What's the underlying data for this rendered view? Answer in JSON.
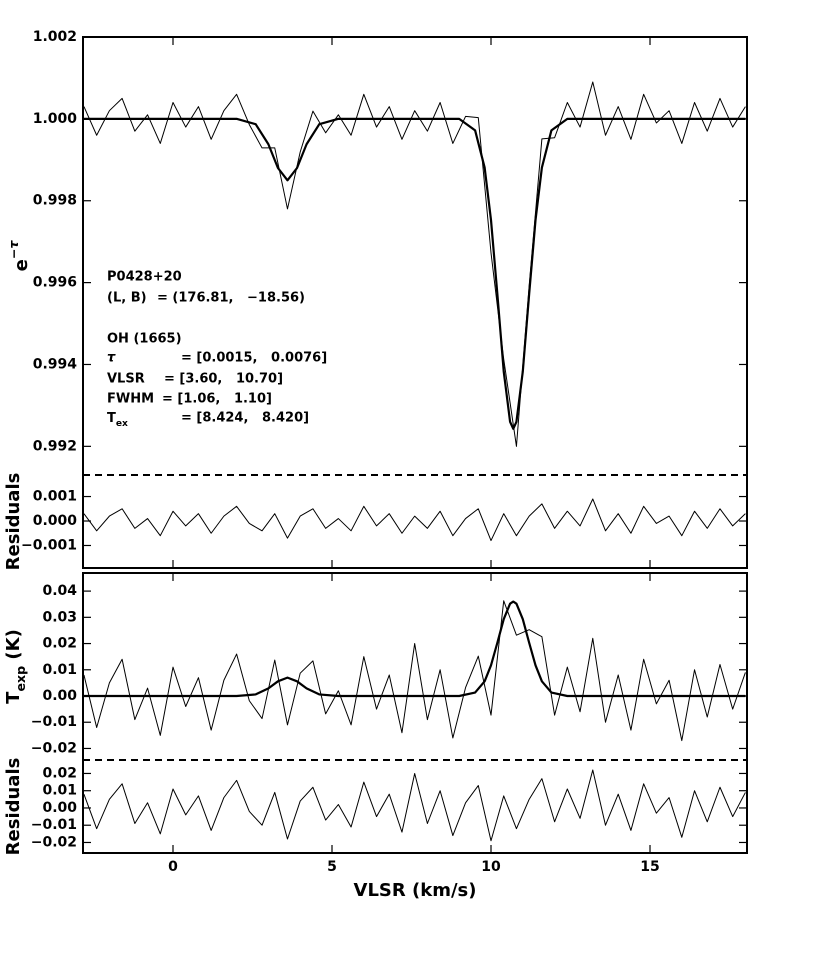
{
  "chart_data": [
    {
      "type": "line",
      "ylabel": {
        "base": "e",
        "sup": "−τ"
      },
      "y2label": "Residuals",
      "xlim": [
        -2.83,
        18.05
      ],
      "xticks": [
        0,
        5,
        10,
        15
      ],
      "show_xtick_labels": false,
      "ylim": [
        0.9913,
        1.002
      ],
      "yticks": [
        0.992,
        0.994,
        0.996,
        0.998,
        {
          "value": 1,
          "label": "1.000"
        },
        1.002
      ],
      "y2lim": [
        -0.00192,
        0.00188
      ],
      "y2ticks": [
        {
          "value": -0.001,
          "label": "−0.001"
        },
        {
          "value": 0,
          "label": "0.000"
        },
        0.001
      ],
      "x": [
        -2.8,
        -2.4,
        -2.0,
        -1.6,
        -1.2,
        -0.8,
        -0.4,
        0.0,
        0.4,
        0.8,
        1.2,
        1.6,
        2.0,
        2.4,
        2.8,
        3.2,
        3.6,
        4.0,
        4.4,
        4.8,
        5.2,
        5.6,
        6.0,
        6.4,
        6.8,
        7.2,
        7.6,
        8.0,
        8.4,
        8.8,
        9.2,
        9.6,
        10.0,
        10.4,
        10.8,
        11.2,
        11.6,
        12.0,
        12.4,
        12.8,
        13.2,
        13.6,
        14.0,
        14.4,
        14.8,
        15.2,
        15.6,
        16.0,
        16.4,
        16.8,
        17.2,
        17.6,
        18.0
      ],
      "series": [
        {
          "color": "#000000",
          "linewidth": 1,
          "values": [
            1.0003,
            0.9996,
            1.0002,
            1.0005,
            0.9997,
            1.0001,
            0.9994,
            1.0004,
            0.9998,
            1.0003,
            0.9995,
            1.0002,
            1.0006,
            0.99986,
            0.99929,
            0.99929,
            0.9978,
            0.99919,
            1.00019,
            0.99966,
            1.0001,
            0.9996,
            1.0006,
            0.9998,
            1.0003,
            0.9995,
            1.0002,
            0.9997,
            1.0004,
            0.9994,
            1.00006,
            1.00003,
            0.99673,
            0.99413,
            0.992,
            0.99592,
            0.99951,
            0.99954,
            1.0004,
            0.9998,
            1.0009,
            0.9996,
            1.0003,
            0.9995,
            1.0006,
            0.9999,
            1.0002,
            0.9994,
            1.0004,
            0.9997,
            1.0005,
            0.9998,
            1.0003
          ]
        },
        {
          "color": "#000000",
          "linewidth": 2.2,
          "x": [
            -2.8,
            2.0,
            2.6,
            3.0,
            3.3,
            3.6,
            3.9,
            4.2,
            4.6,
            5.2,
            9.0,
            9.5,
            9.8,
            10.0,
            10.2,
            10.4,
            10.6,
            10.7,
            10.8,
            11.0,
            11.2,
            11.4,
            11.6,
            11.9,
            12.4,
            18.0
          ],
          "values": [
            1,
            1,
            0.99987,
            0.99938,
            0.9988,
            0.9985,
            0.9988,
            0.99938,
            0.99987,
            1,
            1,
            0.99972,
            0.99881,
            0.99753,
            0.99572,
            0.99383,
            0.9926,
            0.99243,
            0.9926,
            0.99383,
            0.99572,
            0.99753,
            0.99881,
            0.99972,
            1,
            1
          ]
        },
        {
          "color": "#000000",
          "linewidth": 1,
          "axis": "y2",
          "values": [
            0.0003,
            -0.0004,
            0.0002,
            0.0005,
            -0.0003,
            0.0001,
            -0.0006,
            0.0004,
            -0.0002,
            0.0003,
            -0.0005,
            0.0002,
            0.0006,
            -0.0001,
            -0.0004,
            0.0003,
            -0.0007,
            0.0002,
            0.0005,
            -0.0003,
            0.0001,
            -0.0004,
            0.0006,
            -0.0002,
            0.0003,
            -0.0005,
            0.0002,
            -0.0003,
            0.0004,
            -0.0006,
            0.0001,
            0.0005,
            -0.0008,
            0.0003,
            -0.0006,
            0.0002,
            0.0007,
            -0.0003,
            0.0004,
            -0.0002,
            0.0009,
            -0.0004,
            0.0003,
            -0.0005,
            0.0006,
            -0.0001,
            0.0002,
            -0.0006,
            0.0004,
            -0.0003,
            0.0005,
            -0.0002,
            0.0003
          ]
        }
      ],
      "annotations": [
        {
          "label": "P0428+20"
        },
        {
          "label": "(L, B)",
          "value": "= (176.81,   −18.56)"
        },
        {
          "label": "OH (1665)"
        },
        {
          "label": "τ",
          "value": "= [0.0015,   0.0076]"
        },
        {
          "label": "VLSR",
          "value": "= [3.60,   10.70]"
        },
        {
          "label": "FWHM",
          "value": "= [1.06,   1.10]"
        },
        {
          "label": {
            "base": "T",
            "sub": "ex"
          },
          "value": "= [8.424,   8.420]"
        }
      ]
    },
    {
      "type": "line",
      "ylabel": {
        "base": "T",
        "sub": "exp",
        "rest": " (K)"
      },
      "y2label": "Residuals",
      "xlabel": "VLSR (km/s)",
      "xlim": [
        -2.83,
        18.05
      ],
      "xticks": [
        0,
        5,
        10,
        15
      ],
      "show_xtick_labels": true,
      "ylim": [
        -0.0244,
        0.0469
      ],
      "yticks": [
        {
          "value": -0.02,
          "label": "−0.02"
        },
        {
          "value": -0.01,
          "label": "−0.01"
        },
        {
          "value": 0,
          "label": "0.00"
        },
        0.01,
        0.02,
        0.03,
        0.04
      ],
      "y2lim": [
        -0.0261,
        0.0278
      ],
      "y2ticks": [
        {
          "value": -0.02,
          "label": "−0.02"
        },
        {
          "value": -0.01,
          "label": "−0.01"
        },
        {
          "value": 0,
          "label": "0.00"
        },
        0.01,
        0.02
      ],
      "x": [
        -2.8,
        -2.4,
        -2.0,
        -1.6,
        -1.2,
        -0.8,
        -0.4,
        0.0,
        0.4,
        0.8,
        1.2,
        1.6,
        2.0,
        2.4,
        2.8,
        3.2,
        3.6,
        4.0,
        4.4,
        4.8,
        5.2,
        5.6,
        6.0,
        6.4,
        6.8,
        7.2,
        7.6,
        8.0,
        8.4,
        8.8,
        9.2,
        9.6,
        10.0,
        10.4,
        10.8,
        11.2,
        11.6,
        12.0,
        12.4,
        12.8,
        13.2,
        13.6,
        14.0,
        14.4,
        14.8,
        15.2,
        15.6,
        16.0,
        16.4,
        16.8,
        17.2,
        17.6,
        18.0
      ],
      "series": [
        {
          "color": "#000000",
          "linewidth": 1,
          "values": [
            0.008,
            -0.012,
            0.005,
            0.014,
            -0.009,
            0.003,
            -0.015,
            0.011,
            -0.004,
            0.007,
            -0.013,
            0.006,
            0.016,
            -0.0018,
            -0.0086,
            0.0137,
            -0.011,
            0.0087,
            0.0134,
            -0.0068,
            0.002,
            -0.011,
            0.015,
            -0.005,
            0.008,
            -0.014,
            0.02,
            -0.009,
            0.01,
            -0.016,
            0.0032,
            0.0152,
            -0.0073,
            0.0363,
            0.0232,
            0.0253,
            0.0226,
            -0.0073,
            0.011,
            -0.006,
            0.022,
            -0.01,
            0.008,
            -0.013,
            0.014,
            -0.003,
            0.006,
            -0.017,
            0.01,
            -0.008,
            0.012,
            -0.005,
            0.009
          ]
        },
        {
          "color": "#000000",
          "linewidth": 2.2,
          "x": [
            -2.8,
            2.0,
            2.6,
            3.0,
            3.3,
            3.6,
            3.9,
            4.2,
            4.6,
            5.2,
            9.0,
            9.5,
            9.8,
            10.0,
            10.2,
            10.4,
            10.6,
            10.7,
            10.8,
            11.0,
            11.2,
            11.4,
            11.6,
            11.9,
            12.4,
            18.0
          ],
          "values": [
            0,
            0,
            0.0006,
            0.0029,
            0.0056,
            0.007,
            0.0056,
            0.0029,
            0.0006,
            0,
            0,
            0.0013,
            0.0056,
            0.0117,
            0.0203,
            0.0293,
            0.0352,
            0.036,
            0.0352,
            0.0293,
            0.0203,
            0.0117,
            0.0056,
            0.0013,
            0,
            0
          ]
        },
        {
          "color": "#000000",
          "linewidth": 1,
          "axis": "y2",
          "values": [
            0.008,
            -0.012,
            0.005,
            0.014,
            -0.009,
            0.003,
            -0.015,
            0.011,
            -0.004,
            0.007,
            -0.013,
            0.006,
            0.016,
            -0.002,
            -0.01,
            0.009,
            -0.018,
            0.004,
            0.012,
            -0.007,
            0.002,
            -0.011,
            0.015,
            -0.005,
            0.008,
            -0.014,
            0.02,
            -0.009,
            0.01,
            -0.016,
            0.003,
            0.013,
            -0.019,
            0.007,
            -0.012,
            0.005,
            0.017,
            -0.008,
            0.011,
            -0.006,
            0.022,
            -0.01,
            0.008,
            -0.013,
            0.014,
            -0.003,
            0.006,
            -0.017,
            0.01,
            -0.008,
            0.012,
            -0.005,
            0.009
          ]
        }
      ]
    }
  ]
}
